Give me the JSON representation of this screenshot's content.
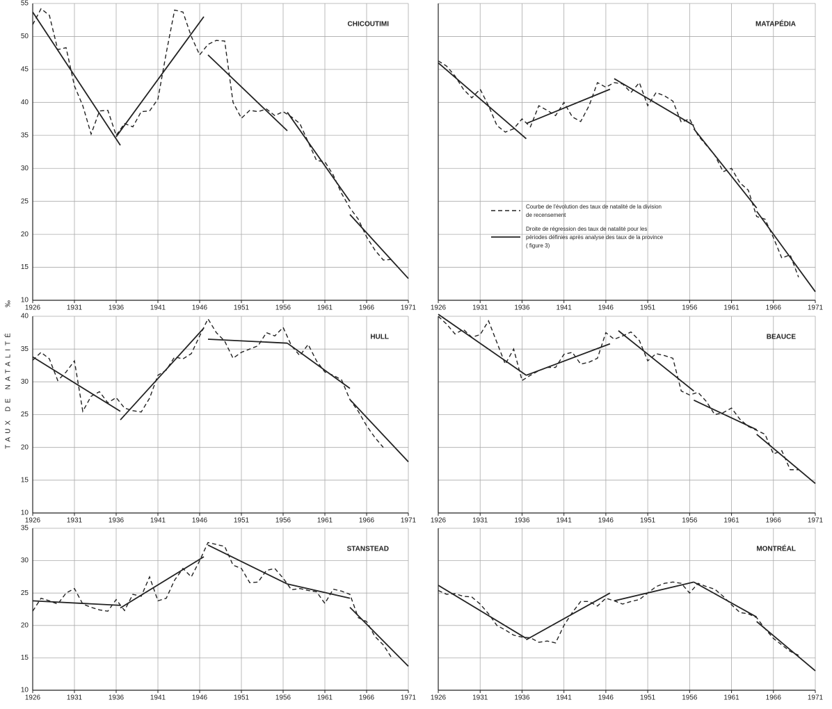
{
  "y_axis_label": "TAUX DE NATALITÉ",
  "y_axis_unit": "‰",
  "chart_data": [
    {
      "type": "line",
      "title": "CHICOUTIMI",
      "xlim": [
        1926,
        1971
      ],
      "xticks": [
        1926,
        1931,
        1936,
        1941,
        1946,
        1951,
        1956,
        1961,
        1966,
        1971
      ],
      "ylim": [
        10,
        55
      ],
      "yticks": [
        10,
        15,
        20,
        25,
        30,
        35,
        40,
        45,
        50,
        55
      ],
      "grid": true,
      "color": "#222222",
      "series": [
        {
          "style": "dashed",
          "x": [
            1926,
            1927,
            1928,
            1929,
            1930,
            1931,
            1932,
            1933,
            1934,
            1935,
            1936,
            1937,
            1938,
            1939,
            1940,
            1941,
            1942,
            1943,
            1944,
            1945,
            1946,
            1947,
            1948,
            1949,
            1950,
            1951,
            1952,
            1953,
            1954,
            1955,
            1956,
            1957,
            1958,
            1959,
            1960,
            1961,
            1962,
            1963,
            1964,
            1965,
            1966,
            1967,
            1968,
            1969
          ],
          "values": [
            51.8,
            54.2,
            53.2,
            48,
            48.3,
            42.5,
            39.5,
            35.2,
            38.7,
            38.8,
            35,
            36.8,
            36.3,
            38.6,
            38.7,
            40.5,
            47.5,
            54,
            53.7,
            50,
            47.2,
            48.8,
            49.4,
            49.3,
            40,
            37.6,
            38.8,
            38.6,
            39,
            38,
            38.6,
            37.8,
            36.8,
            34,
            31.2,
            31,
            29,
            26.2,
            24,
            22.3,
            19.6,
            17.6,
            16.1,
            16.2
          ]
        },
        {
          "style": "solid",
          "segments": [
            {
              "x": [
                1926,
                1936.5
              ],
              "values": [
                53.7,
                33.5
              ]
            },
            {
              "x": [
                1936,
                1946.5
              ],
              "values": [
                34.8,
                53
              ]
            },
            {
              "x": [
                1947,
                1956.5
              ],
              "values": [
                47.2,
                35.7
              ]
            },
            {
              "x": [
                1956.5,
                1964
              ],
              "values": [
                38.5,
                25
              ]
            },
            {
              "x": [
                1964,
                1971
              ],
              "values": [
                23,
                13.3
              ]
            }
          ]
        }
      ]
    },
    {
      "type": "line",
      "title": "MATAPÉDIA",
      "xlim": [
        1926,
        1971
      ],
      "xticks": [
        1926,
        1931,
        1936,
        1941,
        1946,
        1951,
        1956,
        1961,
        1966,
        1971
      ],
      "ylim": [
        10,
        55
      ],
      "yticks": [
        10,
        15,
        20,
        25,
        30,
        35,
        40,
        45,
        50,
        55
      ],
      "ytick_labels": false,
      "grid": true,
      "color": "#222222",
      "series": [
        {
          "name": "Courbe de l'évolution des taux de natalité de la division de recensement",
          "style": "dashed",
          "x": [
            1926,
            1927,
            1928,
            1929,
            1930,
            1931,
            1932,
            1933,
            1934,
            1935,
            1936,
            1937,
            1938,
            1939,
            1940,
            1941,
            1942,
            1943,
            1944,
            1945,
            1946,
            1947,
            1948,
            1949,
            1950,
            1951,
            1952,
            1953,
            1954,
            1955,
            1956,
            1957,
            1958,
            1959,
            1960,
            1961,
            1962,
            1963,
            1964,
            1965,
            1966,
            1967,
            1968,
            1969
          ],
          "values": [
            46.3,
            45.5,
            44,
            42,
            40.7,
            42,
            39.5,
            36.5,
            35.5,
            36,
            37.5,
            36.3,
            39.5,
            38.8,
            38,
            40,
            37.8,
            37.1,
            39.5,
            43,
            42.3,
            43,
            42.8,
            41.5,
            43,
            39.5,
            41.5,
            41,
            40.2,
            37,
            37.5,
            35,
            33.5,
            32,
            29.5,
            30,
            27.8,
            26.7,
            22.7,
            22.3,
            19.5,
            16.4,
            16.9,
            13.5
          ]
        },
        {
          "name": "Droite de régression des taux de natalité pour les périodes définies après analyse des taux de la province ( figure 3)",
          "style": "solid",
          "segments": [
            {
              "x": [
                1926,
                1936.5
              ],
              "values": [
                46,
                34.5
              ]
            },
            {
              "x": [
                1936.5,
                1946.5
              ],
              "values": [
                36.8,
                42
              ]
            },
            {
              "x": [
                1947,
                1956.5
              ],
              "values": [
                43.6,
                36.5
              ]
            },
            {
              "x": [
                1956.5,
                1964
              ],
              "values": [
                36,
                24
              ]
            },
            {
              "x": [
                1964,
                1971
              ],
              "values": [
                23.5,
                11.3
              ]
            }
          ]
        }
      ]
    },
    {
      "type": "line",
      "title": "HULL",
      "xlim": [
        1926,
        1971
      ],
      "xticks": [
        1926,
        1931,
        1936,
        1941,
        1946,
        1951,
        1956,
        1961,
        1966,
        1971
      ],
      "ylim": [
        10,
        40
      ],
      "yticks": [
        10,
        15,
        20,
        25,
        30,
        35,
        40
      ],
      "grid": true,
      "color": "#222222",
      "series": [
        {
          "style": "dashed",
          "x": [
            1926,
            1927,
            1928,
            1929,
            1930,
            1931,
            1932,
            1933,
            1934,
            1935,
            1936,
            1937,
            1938,
            1939,
            1940,
            1941,
            1942,
            1943,
            1944,
            1945,
            1946,
            1947,
            1948,
            1949,
            1950,
            1951,
            1952,
            1953,
            1954,
            1955,
            1956,
            1957,
            1958,
            1959,
            1960,
            1961,
            1962,
            1963,
            1964,
            1965,
            1966,
            1967,
            1968
          ],
          "values": [
            33.3,
            34.5,
            33.5,
            30.2,
            31.5,
            33.2,
            25.5,
            27.8,
            28.5,
            26.8,
            27.6,
            26,
            25.6,
            25.4,
            27.5,
            31,
            31.8,
            33.8,
            33.5,
            34.3,
            37,
            39.6,
            37.5,
            36.2,
            33.6,
            34.5,
            35,
            35.5,
            37.5,
            37,
            38.3,
            35.5,
            34,
            35.7,
            33.2,
            31.5,
            31,
            30.3,
            27.3,
            25.5,
            23.3,
            21.5,
            20
          ]
        },
        {
          "style": "solid",
          "segments": [
            {
              "x": [
                1926,
                1936.5
              ],
              "values": [
                33.8,
                25.5
              ]
            },
            {
              "x": [
                1936.5,
                1946.5
              ],
              "values": [
                24.2,
                38.2
              ]
            },
            {
              "x": [
                1947,
                1956.5
              ],
              "values": [
                36.5,
                35.9
              ]
            },
            {
              "x": [
                1956.5,
                1964
              ],
              "values": [
                35.9,
                29
              ]
            },
            {
              "x": [
                1964,
                1971
              ],
              "values": [
                27.3,
                17.8
              ]
            }
          ]
        }
      ]
    },
    {
      "type": "line",
      "title": "BEAUCE",
      "xlim": [
        1926,
        1971
      ],
      "xticks": [
        1926,
        1931,
        1936,
        1941,
        1946,
        1951,
        1956,
        1961,
        1966,
        1971
      ],
      "ylim": [
        10,
        40
      ],
      "yticks": [
        10,
        15,
        20,
        25,
        30,
        35,
        40
      ],
      "ytick_labels": false,
      "grid": true,
      "color": "#222222",
      "series": [
        {
          "style": "dashed",
          "x": [
            1926,
            1927,
            1928,
            1929,
            1930,
            1931,
            1932,
            1933,
            1934,
            1935,
            1936,
            1937,
            1938,
            1939,
            1940,
            1941,
            1942,
            1943,
            1944,
            1945,
            1946,
            1947,
            1948,
            1949,
            1950,
            1951,
            1952,
            1953,
            1954,
            1955,
            1956,
            1957,
            1958,
            1959,
            1960,
            1961,
            1962,
            1963,
            1964,
            1965,
            1966,
            1967,
            1968,
            1969
          ],
          "values": [
            40,
            38.8,
            37.3,
            38,
            36.8,
            37.2,
            39.3,
            36,
            32.7,
            35,
            30.2,
            31,
            31.7,
            32.2,
            32.2,
            34.2,
            34.5,
            32.7,
            33,
            33.6,
            37.5,
            36.5,
            37,
            37.6,
            36.3,
            33.2,
            34.3,
            34,
            33.6,
            28.6,
            28,
            28.4,
            27,
            25,
            25.3,
            26,
            24.3,
            23.2,
            22.6,
            22,
            19,
            19.5,
            16.6,
            16.6
          ]
        },
        {
          "style": "solid",
          "segments": [
            {
              "x": [
                1926,
                1936.5
              ],
              "values": [
                40.3,
                31
              ]
            },
            {
              "x": [
                1936.5,
                1946.5
              ],
              "values": [
                31,
                35.8
              ]
            },
            {
              "x": [
                1947.5,
                1956.5
              ],
              "values": [
                37.8,
                28.6
              ]
            },
            {
              "x": [
                1956.5,
                1964
              ],
              "values": [
                27.2,
                22.7
              ]
            },
            {
              "x": [
                1964,
                1971
              ],
              "values": [
                22,
                14.5
              ]
            }
          ]
        }
      ]
    },
    {
      "type": "line",
      "title": "STANSTEAD",
      "xlim": [
        1926,
        1971
      ],
      "xticks": [
        1926,
        1931,
        1936,
        1941,
        1946,
        1951,
        1956,
        1961,
        1966,
        1971
      ],
      "ylim": [
        10,
        35
      ],
      "yticks": [
        10,
        15,
        20,
        25,
        30,
        35
      ],
      "grid": true,
      "color": "#222222",
      "series": [
        {
          "style": "dashed",
          "x": [
            1926,
            1927,
            1928,
            1929,
            1930,
            1931,
            1932,
            1933,
            1934,
            1935,
            1936,
            1937,
            1938,
            1939,
            1940,
            1941,
            1942,
            1943,
            1944,
            1945,
            1946,
            1947,
            1948,
            1949,
            1950,
            1951,
            1952,
            1953,
            1954,
            1955,
            1956,
            1957,
            1958,
            1959,
            1960,
            1961,
            1962,
            1963,
            1964,
            1965,
            1966,
            1967,
            1968,
            1969
          ],
          "values": [
            22.2,
            24.2,
            23.8,
            23.3,
            25,
            25.7,
            23.3,
            22.8,
            22.4,
            22.2,
            24,
            22.3,
            24.8,
            24.5,
            27.5,
            23.8,
            24.2,
            27,
            28.8,
            27.5,
            30,
            32.8,
            32.5,
            32.2,
            29.3,
            28.8,
            26.6,
            26.7,
            28.5,
            28.8,
            27.3,
            25.5,
            25.7,
            25.4,
            25.2,
            23.4,
            25.6,
            25.3,
            24.8,
            21.2,
            20.6,
            18.3,
            17,
            15
          ]
        },
        {
          "style": "solid",
          "segments": [
            {
              "x": [
                1926,
                1936.5
              ],
              "values": [
                23.8,
                23.1
              ]
            },
            {
              "x": [
                1936.5,
                1946.5
              ],
              "values": [
                22.7,
                30.6
              ]
            },
            {
              "x": [
                1947,
                1956.5
              ],
              "values": [
                32.4,
                26.4
              ]
            },
            {
              "x": [
                1956.5,
                1964
              ],
              "values": [
                26.4,
                24.2
              ]
            },
            {
              "x": [
                1964,
                1971
              ],
              "values": [
                22.8,
                13.7
              ]
            }
          ]
        }
      ]
    },
    {
      "type": "line",
      "title": "MONTRÉAL",
      "xlim": [
        1926,
        1971
      ],
      "xticks": [
        1926,
        1931,
        1936,
        1941,
        1946,
        1951,
        1956,
        1961,
        1966,
        1971
      ],
      "ylim": [
        10,
        35
      ],
      "yticks": [
        10,
        15,
        20,
        25,
        30,
        35
      ],
      "ytick_labels": false,
      "grid": true,
      "color": "#222222",
      "series": [
        {
          "style": "dashed",
          "x": [
            1926,
            1927,
            1928,
            1929,
            1930,
            1931,
            1932,
            1933,
            1934,
            1935,
            1936,
            1937,
            1938,
            1939,
            1940,
            1941,
            1942,
            1943,
            1944,
            1945,
            1946,
            1947,
            1948,
            1949,
            1950,
            1951,
            1952,
            1953,
            1954,
            1955,
            1956,
            1957,
            1958,
            1959,
            1960,
            1961,
            1962,
            1963,
            1964,
            1965,
            1966,
            1967,
            1968,
            1969
          ],
          "values": [
            25.4,
            24.8,
            24.9,
            24.5,
            24.4,
            23.3,
            21.8,
            20,
            19.3,
            18.5,
            18.2,
            18.1,
            17.4,
            17.6,
            17.3,
            20,
            22,
            23.7,
            23.7,
            23,
            24.2,
            23.8,
            23.3,
            23.7,
            24,
            25,
            26,
            26.5,
            26.7,
            26.5,
            25,
            26.5,
            26,
            25.6,
            24.5,
            23.2,
            22,
            21.8,
            21.2,
            19.5,
            18,
            17,
            16,
            15.4
          ]
        },
        {
          "style": "solid",
          "segments": [
            {
              "x": [
                1926,
                1936.5
              ],
              "values": [
                26.2,
                18
              ]
            },
            {
              "x": [
                1936.5,
                1946.5
              ],
              "values": [
                17.8,
                25
              ]
            },
            {
              "x": [
                1947,
                1956.5
              ],
              "values": [
                23.8,
                26.7
              ]
            },
            {
              "x": [
                1956.5,
                1964
              ],
              "values": [
                26.7,
                21.3
              ]
            },
            {
              "x": [
                1964,
                1971
              ],
              "values": [
                20.6,
                13
              ]
            }
          ]
        }
      ]
    }
  ]
}
